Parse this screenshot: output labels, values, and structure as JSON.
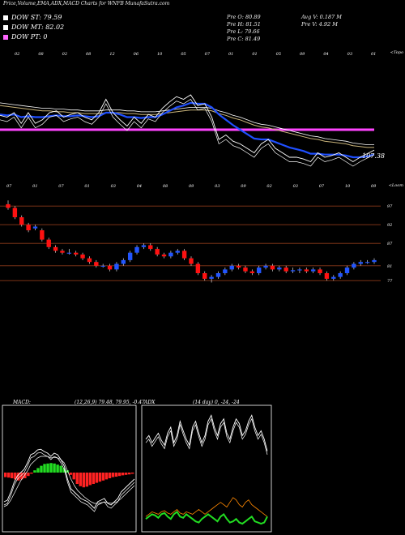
{
  "header": {
    "title": "Price,Volume,EMA,ADX,MACD Charts for WNFB MunafaSutra.com"
  },
  "legend": [
    {
      "label": "DOW ST: 79.59",
      "color": "#ffffff"
    },
    {
      "label": "DOW MT: 82.02",
      "color": "#ffffff"
    },
    {
      "label": "DOW PT: 0",
      "color": "#ff66ff"
    }
  ],
  "stats": {
    "open": "Pre O: 80.89",
    "high": "Pre H: 81.51",
    "low": "Pre L: 79.66",
    "close": "Pre C: 81.49",
    "avg_volume": "Avg V: 0.187 M",
    "prev_volume": "Pre V: 4.92 M"
  },
  "colors": {
    "up": "#2255ff",
    "down": "#ff1111",
    "ema": "#1f4fff",
    "pivot": "#ff44ff",
    "adx_green": "#22dd22",
    "adx_orange": "#ff8800",
    "grid": "#8b3a1a"
  },
  "chart_data": [
    {
      "type": "line",
      "title": "EMA panel",
      "corner_label": "<Topo",
      "last_value_label": "107.38",
      "top_date_labels": [
        "02",
        "08",
        "02",
        "08",
        "12",
        "06",
        "10",
        "05",
        "07",
        "01",
        "01",
        "05",
        "09",
        "04",
        "03",
        "01"
      ],
      "bottom_date_labels": [
        "07",
        "01",
        "07",
        "01",
        "03",
        "04",
        "08",
        "09",
        "03",
        "09",
        "02",
        "03",
        "07",
        "10",
        "09"
      ],
      "pivot_line": 1,
      "price": [
        0.57,
        0.55,
        0.6,
        0.48,
        0.6,
        0.48,
        0.52,
        0.6,
        0.62,
        0.55,
        0.58,
        0.6,
        0.55,
        0.52,
        0.6,
        0.75,
        0.6,
        0.52,
        0.45,
        0.55,
        0.48,
        0.58,
        0.55,
        0.65,
        0.72,
        0.78,
        0.75,
        0.8,
        0.68,
        0.7,
        0.55,
        0.3,
        0.35,
        0.28,
        0.25,
        0.2,
        0.15,
        0.25,
        0.3,
        0.2,
        0.15,
        0.1,
        0.1,
        0.08,
        0.05,
        0.15,
        0.1,
        0.12,
        0.15,
        0.1,
        0.05,
        0.1,
        0.14,
        0.18
      ],
      "ema_short": [
        0.58,
        0.57,
        0.58,
        0.55,
        0.56,
        0.55,
        0.55,
        0.56,
        0.57,
        0.56,
        0.56,
        0.57,
        0.56,
        0.55,
        0.56,
        0.6,
        0.6,
        0.58,
        0.55,
        0.55,
        0.54,
        0.55,
        0.55,
        0.58,
        0.62,
        0.66,
        0.68,
        0.71,
        0.7,
        0.7,
        0.66,
        0.58,
        0.52,
        0.46,
        0.41,
        0.36,
        0.31,
        0.3,
        0.3,
        0.27,
        0.24,
        0.21,
        0.19,
        0.17,
        0.14,
        0.14,
        0.13,
        0.13,
        0.13,
        0.12,
        0.1,
        0.1,
        0.11,
        0.13
      ],
      "ema_long": [
        0.68,
        0.67,
        0.66,
        0.65,
        0.64,
        0.63,
        0.62,
        0.62,
        0.61,
        0.61,
        0.6,
        0.6,
        0.59,
        0.59,
        0.59,
        0.6,
        0.6,
        0.6,
        0.59,
        0.59,
        0.58,
        0.58,
        0.58,
        0.59,
        0.6,
        0.61,
        0.62,
        0.63,
        0.63,
        0.63,
        0.62,
        0.59,
        0.57,
        0.54,
        0.52,
        0.49,
        0.46,
        0.44,
        0.43,
        0.41,
        0.39,
        0.37,
        0.35,
        0.33,
        0.31,
        0.3,
        0.28,
        0.27,
        0.26,
        0.25,
        0.23,
        0.22,
        0.21,
        0.21
      ]
    },
    {
      "type": "bar",
      "title": "Price candles",
      "corner_label": "<Loom",
      "y_ticks": [
        "97",
        "92",
        "87",
        "81",
        "77"
      ],
      "x": [
        1,
        2,
        3,
        4,
        5,
        6,
        7,
        8,
        9,
        10,
        11,
        12,
        13,
        14,
        15,
        16,
        17,
        18,
        19,
        20,
        21,
        22,
        23,
        24,
        25,
        26,
        27,
        28,
        29,
        30,
        31,
        32,
        33,
        34,
        35,
        36,
        37,
        38,
        39,
        40,
        41,
        42,
        43,
        44,
        45,
        46,
        47,
        48,
        49,
        50,
        51,
        52,
        53,
        54,
        55
      ],
      "open": [
        97.5,
        96.5,
        94.0,
        92.0,
        91.0,
        90.5,
        88.0,
        86.0,
        85.0,
        84.5,
        84.5,
        84.0,
        83.0,
        82.0,
        81.0,
        81.0,
        80.0,
        81.5,
        82.5,
        84.5,
        86.0,
        86.5,
        85.5,
        84.0,
        83.5,
        84.5,
        85.0,
        83.0,
        81.5,
        79.0,
        77.5,
        78.0,
        79.0,
        80.0,
        81.0,
        80.5,
        79.5,
        79.0,
        80.5,
        81.0,
        80.0,
        80.5,
        79.5,
        79.8,
        80.0,
        79.5,
        80.0,
        79.0,
        77.5,
        78.0,
        79.0,
        80.5,
        81.5,
        82.0,
        82.0
      ],
      "close": [
        96.5,
        94.0,
        92.0,
        90.5,
        91.5,
        88.0,
        86.0,
        85.0,
        84.5,
        84.5,
        84.0,
        83.0,
        82.0,
        81.0,
        81.0,
        80.0,
        81.5,
        82.5,
        84.5,
        86.0,
        86.5,
        85.5,
        84.0,
        83.5,
        84.5,
        85.0,
        83.0,
        81.5,
        79.0,
        77.5,
        78.0,
        79.0,
        80.0,
        81.0,
        80.5,
        79.5,
        79.0,
        80.5,
        81.0,
        80.0,
        80.5,
        79.5,
        79.8,
        80.0,
        79.5,
        80.0,
        79.0,
        77.5,
        78.0,
        79.0,
        80.5,
        81.5,
        82.0,
        82.0,
        82.5
      ],
      "high": [
        98.5,
        97.0,
        94.5,
        92.5,
        92.0,
        91.0,
        88.5,
        86.5,
        85.5,
        85.5,
        85.0,
        84.5,
        83.5,
        82.5,
        81.5,
        81.5,
        82.0,
        83.0,
        85.0,
        86.5,
        87.0,
        87.0,
        86.0,
        84.5,
        85.0,
        85.5,
        85.5,
        83.5,
        82.0,
        79.5,
        78.5,
        79.5,
        80.5,
        81.5,
        81.5,
        81.0,
        80.0,
        81.0,
        81.5,
        81.5,
        81.0,
        81.0,
        80.5,
        80.5,
        80.5,
        80.5,
        80.5,
        79.5,
        78.5,
        79.5,
        81.0,
        82.0,
        82.5,
        82.5,
        83.0
      ],
      "low": [
        96.0,
        93.5,
        91.5,
        90.0,
        90.5,
        87.5,
        85.5,
        84.5,
        84.0,
        84.0,
        83.5,
        82.5,
        81.5,
        80.5,
        80.5,
        79.5,
        79.5,
        81.0,
        82.0,
        84.0,
        85.5,
        85.0,
        83.5,
        83.0,
        83.0,
        84.0,
        82.5,
        81.0,
        78.5,
        77.0,
        76.5,
        77.5,
        78.5,
        79.5,
        80.0,
        79.0,
        78.5,
        78.5,
        80.0,
        79.5,
        79.5,
        79.0,
        79.0,
        79.0,
        79.0,
        79.0,
        78.5,
        77.0,
        77.0,
        77.5,
        78.5,
        80.0,
        81.0,
        81.5,
        81.5
      ]
    },
    {
      "type": "bar",
      "title": "MACD: (12,26,9) 79.48, 79.95, -0.47",
      "label_left": "MACD:",
      "label_right": "(12,26,9) 79.48, 79.95, -0.47",
      "histogram": [
        -0.2,
        -0.22,
        -0.25,
        -0.3,
        -0.35,
        -0.3,
        -0.25,
        -0.15,
        -0.05,
        0.1,
        0.2,
        0.3,
        0.38,
        0.4,
        0.42,
        0.4,
        0.35,
        0.3,
        0.2,
        0.1,
        -0.1,
        -0.3,
        -0.5,
        -0.6,
        -0.65,
        -0.62,
        -0.55,
        -0.5,
        -0.45,
        -0.4,
        -0.35,
        -0.3,
        -0.25,
        -0.2,
        -0.18,
        -0.15,
        -0.12,
        -0.1,
        -0.08,
        -0.05
      ],
      "macd": [
        -0.9,
        -0.85,
        -0.6,
        -0.3,
        -0.1,
        0.0,
        0.1,
        0.3,
        0.55,
        0.6,
        0.7,
        0.72,
        0.65,
        0.6,
        0.5,
        0.6,
        0.55,
        0.4,
        0.2,
        -0.2,
        -0.5,
        -0.6,
        -0.7,
        -0.8,
        -0.85,
        -0.9,
        -1.0,
        -1.1,
        -0.9,
        -0.85,
        -0.8,
        -0.95,
        -1.0,
        -0.9,
        -0.8,
        -0.6,
        -0.5,
        -0.4,
        -0.3,
        -0.2
      ],
      "signal": [
        -1.0,
        -0.95,
        -0.8,
        -0.6,
        -0.4,
        -0.2,
        -0.05,
        0.1,
        0.3,
        0.4,
        0.5,
        0.55,
        0.55,
        0.55,
        0.5,
        0.52,
        0.5,
        0.45,
        0.35,
        0.1,
        -0.15,
        -0.35,
        -0.5,
        -0.6,
        -0.7,
        -0.78,
        -0.85,
        -0.9,
        -0.9,
        -0.88,
        -0.86,
        -0.88,
        -0.9,
        -0.88,
        -0.84,
        -0.75,
        -0.65,
        -0.55,
        -0.45,
        -0.35
      ]
    },
    {
      "type": "line",
      "title": "ADX (14 day) 0, -24, -24",
      "label_left": "ADX",
      "label_right": "(14 day) 0, -24, -24",
      "adx": [
        0.75,
        0.78,
        0.72,
        0.76,
        0.8,
        0.74,
        0.7,
        0.8,
        0.85,
        0.72,
        0.78,
        0.9,
        0.82,
        0.75,
        0.7,
        0.85,
        0.9,
        0.8,
        0.72,
        0.78,
        0.9,
        0.95,
        0.85,
        0.78,
        0.88,
        0.92,
        0.8,
        0.75,
        0.85,
        0.92,
        0.88,
        0.78,
        0.82,
        0.9,
        0.95,
        0.85,
        0.78,
        0.82,
        0.75,
        0.65
      ],
      "plus_di": [
        0.08,
        0.1,
        0.12,
        0.11,
        0.09,
        0.12,
        0.13,
        0.1,
        0.08,
        0.12,
        0.14,
        0.1,
        0.09,
        0.12,
        0.1,
        0.08,
        0.06,
        0.05,
        0.08,
        0.1,
        0.12,
        0.1,
        0.08,
        0.06,
        0.1,
        0.12,
        0.08,
        0.05,
        0.06,
        0.08,
        0.05,
        0.04,
        0.06,
        0.08,
        0.1,
        0.06,
        0.05,
        0.04,
        0.05,
        0.1
      ],
      "minus_di": [
        0.1,
        0.12,
        0.14,
        0.13,
        0.12,
        0.14,
        0.15,
        0.13,
        0.12,
        0.14,
        0.16,
        0.13,
        0.12,
        0.14,
        0.13,
        0.12,
        0.14,
        0.16,
        0.14,
        0.12,
        0.14,
        0.16,
        0.18,
        0.2,
        0.22,
        0.2,
        0.18,
        0.22,
        0.26,
        0.24,
        0.2,
        0.18,
        0.22,
        0.24,
        0.2,
        0.18,
        0.16,
        0.14,
        0.12,
        0.1
      ]
    }
  ]
}
